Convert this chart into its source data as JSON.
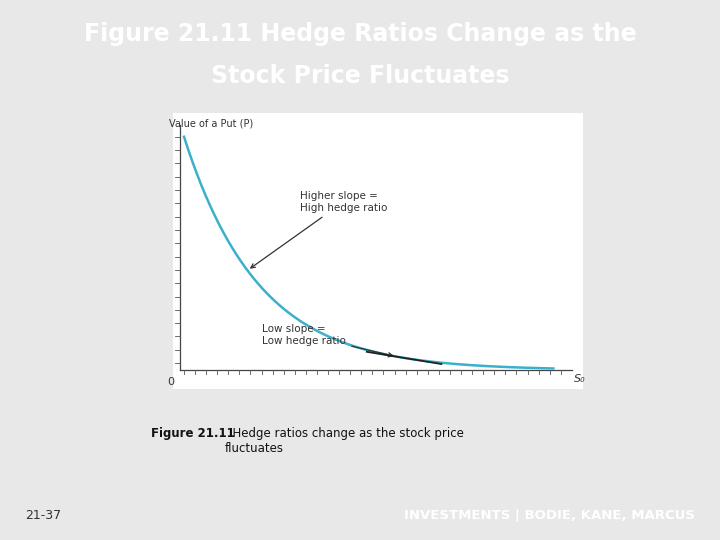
{
  "title_line1": "Figure 21.11 Hedge Ratios Change as the",
  "title_line2": "Stock Price Fluctuates",
  "title_bg_color": "#1b3a6b",
  "title_text_color": "#ffffff",
  "footer_bg_color": "#1b3a6b",
  "footer_left_text": "21-37",
  "footer_right_text": "INVESTMENTS | BODIE, KANE, MARCUS",
  "page_bg_color": "#e8e8e8",
  "card_bg_color": "#eaf4fb",
  "card_border_color": "#b0d0e8",
  "inner_chart_bg_color": "#ffffff",
  "curve_color": "#3ab0cc",
  "tangent_color": "#222222",
  "ylabel": "Value of a Put (P)",
  "xlabel_end": "S₀",
  "origin_label": "0",
  "annotation1_text": "Higher slope =\nHigh hedge ratio",
  "annotation2_text": "Low slope =\nLow hedge ratio",
  "caption_bg_color": "#d6eaf5",
  "caption_bold": "Figure 21.11",
  "caption_rest": "  Hedge ratios change as the stock price\nfluctuates",
  "caption_fontsize": 8.5
}
